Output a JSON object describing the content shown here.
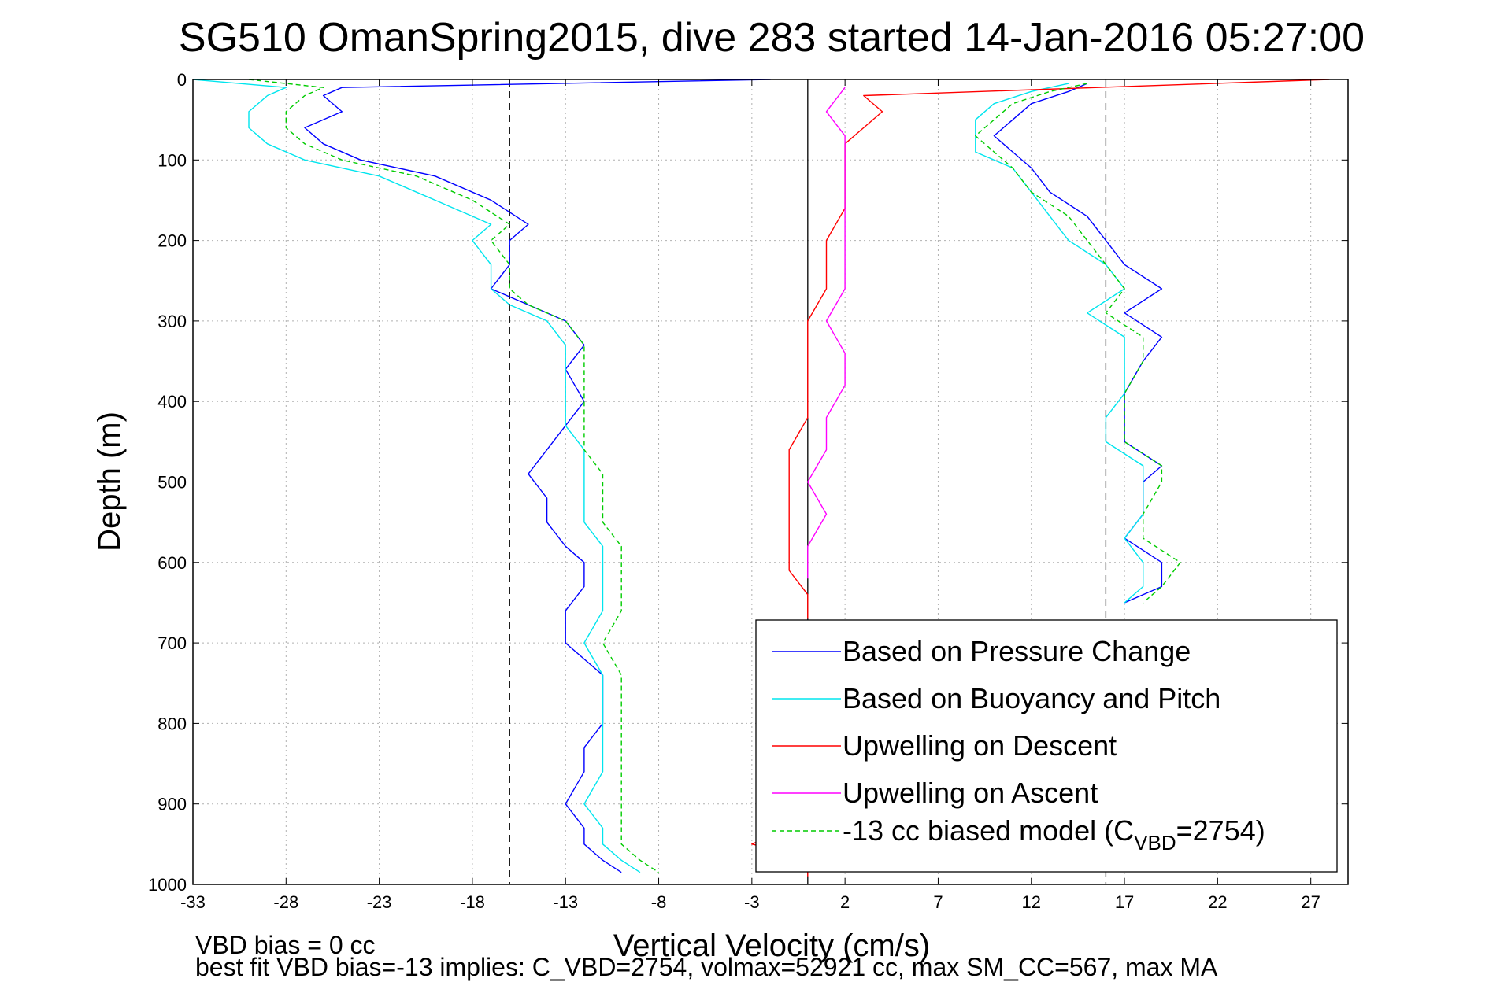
{
  "chart_data": {
    "type": "line",
    "title": "SG510 OmanSpring2015, dive 283 started 14-Jan-2016 05:27:00",
    "xlabel": "Vertical Velocity (cm/s)",
    "ylabel": "Depth (m)",
    "xlim": [
      -33,
      29
    ],
    "ylim": [
      0,
      1000
    ],
    "y_reversed": true,
    "x_ticks": [
      -33,
      -28,
      -23,
      -18,
      -13,
      -8,
      -3,
      2,
      7,
      12,
      17,
      22,
      27
    ],
    "x_tick_labels": [
      "-33",
      "-28",
      "-23",
      "-18",
      "-13",
      "-8",
      "-3",
      "2",
      "7",
      "12",
      "17",
      "22",
      "27"
    ],
    "y_ticks": [
      0,
      100,
      200,
      300,
      400,
      500,
      600,
      700,
      800,
      900,
      1000
    ],
    "y_tick_labels": [
      "0",
      "100",
      "200",
      "300",
      "400",
      "500",
      "600",
      "700",
      "800",
      "900",
      "1000"
    ],
    "grid": true,
    "legend_position": "bottom-right",
    "reference_lines": [
      {
        "x": -16,
        "style": "dashed"
      },
      {
        "x": 0,
        "style": "solid"
      },
      {
        "x": 16,
        "style": "dashed"
      }
    ],
    "series": [
      {
        "name": "Based on Pressure Change",
        "color": "#0000ff",
        "dash": "",
        "segments": [
          {
            "depth": [
              0,
              10,
              20,
              40,
              60,
              80,
              100,
              120,
              150,
              180,
              200,
              230,
              260,
              280,
              300,
              330,
              360,
              400,
              430,
              460,
              490,
              520,
              550,
              580,
              600,
              630,
              660,
              700,
              740,
              760,
              800,
              830,
              860,
              900,
              930,
              950,
              970,
              985
            ],
            "velocity": [
              -2,
              -25,
              -26,
              -25,
              -27,
              -26,
              -24,
              -20,
              -17,
              -15,
              -16,
              -16,
              -17,
              -15,
              -13,
              -12,
              -13,
              -12,
              -13,
              -14,
              -15,
              -14,
              -14,
              -13,
              -12,
              -12,
              -13,
              -13,
              -11,
              -11,
              -11,
              -12,
              -12,
              -13,
              -12,
              -12,
              -11,
              -10
            ]
          },
          {
            "depth": [
              5,
              15,
              30,
              50,
              70,
              90,
              110,
              140,
              170,
              200,
              230,
              260,
              290,
              320,
              350,
              390,
              420,
              450,
              480,
              500,
              540,
              570,
              600,
              630,
              650
            ],
            "velocity": [
              15,
              14,
              12,
              11,
              10,
              11,
              12,
              13,
              15,
              16,
              17,
              19,
              17,
              19,
              18,
              17,
              17,
              17,
              19,
              18,
              18,
              17,
              19,
              19,
              17
            ]
          }
        ]
      },
      {
        "name": "Based on Buoyancy and Pitch",
        "color": "#00e5ee",
        "dash": "",
        "segments": [
          {
            "depth": [
              0,
              10,
              20,
              40,
              60,
              80,
              100,
              120,
              150,
              180,
              200,
              230,
              260,
              280,
              300,
              330,
              360,
              400,
              430,
              460,
              490,
              520,
              550,
              580,
              600,
              630,
              660,
              700,
              740,
              760,
              800,
              830,
              860,
              900,
              930,
              950,
              970,
              985
            ],
            "velocity": [
              -33,
              -28,
              -29,
              -30,
              -30,
              -29,
              -27,
              -23,
              -20,
              -17,
              -18,
              -17,
              -17,
              -16,
              -14,
              -13,
              -13,
              -13,
              -13,
              -12,
              -12,
              -12,
              -12,
              -11,
              -11,
              -11,
              -11,
              -12,
              -11,
              -11,
              -11,
              -11,
              -11,
              -12,
              -11,
              -11,
              -10,
              -9
            ]
          },
          {
            "depth": [
              5,
              15,
              30,
              50,
              70,
              90,
              110,
              140,
              170,
              200,
              230,
              260,
              290,
              320,
              350,
              390,
              420,
              450,
              480,
              500,
              540,
              570,
              600,
              630,
              650
            ],
            "velocity": [
              14,
              12,
              10,
              9,
              9,
              9,
              11,
              12,
              13,
              14,
              16,
              17,
              15,
              17,
              17,
              17,
              16,
              16,
              18,
              18,
              18,
              17,
              18,
              18,
              17
            ]
          }
        ]
      },
      {
        "name": "Upwelling on Descent",
        "color": "#ff0000",
        "dash": "",
        "segments": [
          {
            "depth": [
              0,
              20,
              40,
              60,
              80,
              100,
              130,
              160,
              200,
              230,
              260,
              300,
              340,
              380,
              420,
              460,
              490,
              520,
              550,
              580,
              610,
              640,
              670
            ],
            "velocity": [
              28,
              3,
              4,
              3,
              2,
              2,
              2,
              2,
              1,
              1,
              1,
              0,
              0,
              0,
              0,
              -1,
              -1,
              -1,
              -1,
              -1,
              -1,
              0,
              0
            ]
          },
          {
            "depth": [
              940,
              950,
              960,
              980,
              990
            ],
            "velocity": [
              -2,
              -3,
              -1,
              0,
              0
            ]
          }
        ]
      },
      {
        "name": "Upwelling on Ascent",
        "color": "#ff00ff",
        "dash": "",
        "segments": [
          {
            "depth": [
              10,
              40,
              70,
              100,
              140,
              180,
              220,
              260,
              300,
              340,
              380,
              420,
              460,
              500,
              540,
              580,
              620
            ],
            "velocity": [
              2,
              1,
              2,
              2,
              2,
              2,
              2,
              2,
              1,
              2,
              2,
              1,
              1,
              0,
              1,
              0,
              0
            ]
          }
        ]
      },
      {
        "name": "-13 cc biased model (C",
        "color": "#00cc00",
        "dash": "6,4",
        "segments": [
          {
            "depth": [
              0,
              10,
              20,
              40,
              60,
              80,
              100,
              120,
              150,
              180,
              200,
              230,
              260,
              280,
              300,
              330,
              360,
              400,
              430,
              460,
              490,
              520,
              550,
              580,
              600,
              630,
              660,
              700,
              740,
              760,
              800,
              830,
              860,
              900,
              930,
              950,
              970,
              985
            ],
            "velocity": [
              -30,
              -26,
              -27,
              -28,
              -28,
              -27,
              -25,
              -21,
              -18,
              -16,
              -17,
              -16,
              -16,
              -15,
              -13,
              -12,
              -12,
              -12,
              -12,
              -12,
              -11,
              -11,
              -11,
              -10,
              -10,
              -10,
              -10,
              -11,
              -10,
              -10,
              -10,
              -10,
              -10,
              -10,
              -10,
              -10,
              -9,
              -8
            ]
          },
          {
            "depth": [
              5,
              15,
              30,
              50,
              70,
              90,
              110,
              140,
              170,
              200,
              230,
              260,
              290,
              320,
              350,
              390,
              420,
              450,
              480,
              500,
              540,
              570,
              600,
              630,
              650
            ],
            "velocity": [
              15,
              13,
              11,
              10,
              9,
              10,
              11,
              12,
              14,
              15,
              16,
              17,
              16,
              18,
              18,
              17,
              17,
              17,
              19,
              19,
              18,
              18,
              20,
              19,
              18
            ]
          }
        ]
      }
    ],
    "legend_entries": [
      {
        "text": "Based on Pressure Change",
        "color": "#0000ff",
        "dash": ""
      },
      {
        "text": "Based on Buoyancy and Pitch",
        "color": "#00e5ee",
        "dash": ""
      },
      {
        "text": "Upwelling on Descent",
        "color": "#ff0000",
        "dash": ""
      },
      {
        "text": "Upwelling on Ascent",
        "color": "#ff00ff",
        "dash": ""
      },
      {
        "text": "-13 cc biased model (C",
        "sub": "VBD",
        "suffix": "=2754)",
        "color": "#00cc00",
        "dash": "6,4"
      }
    ],
    "annotations": [
      "VBD bias = 0 cc",
      "best fit VBD bias=-13 implies: C_VBD=2754, volmax=52921 cc, max SM_CC=567, max MA"
    ]
  }
}
